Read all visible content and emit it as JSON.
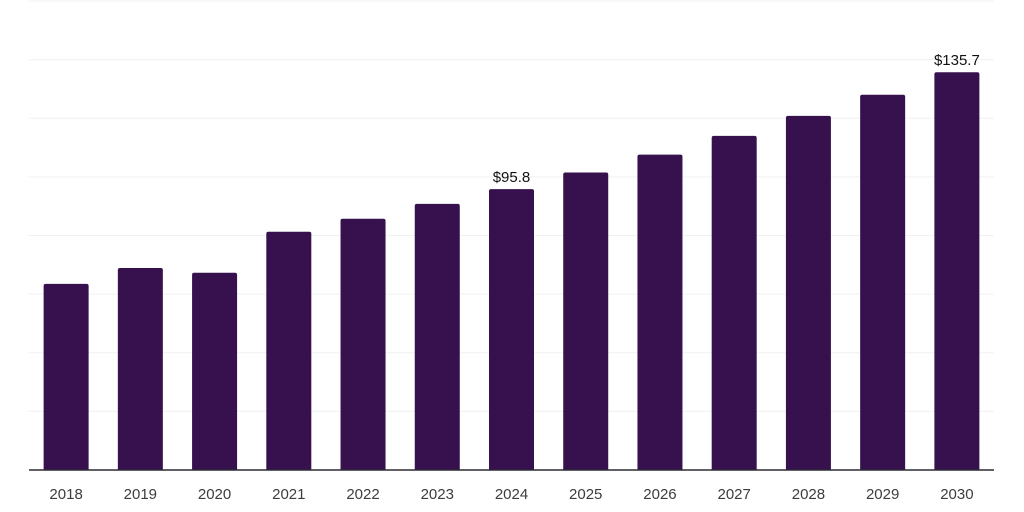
{
  "chart_data": {
    "type": "bar",
    "categories": [
      "2018",
      "2019",
      "2020",
      "2021",
      "2022",
      "2023",
      "2024",
      "2025",
      "2026",
      "2027",
      "2028",
      "2029",
      "2030"
    ],
    "values": [
      63.5,
      68.9,
      67.3,
      81.3,
      85.7,
      90.8,
      95.8,
      101.5,
      107.6,
      114.0,
      120.8,
      128.0,
      135.7
    ],
    "data_labels": {
      "2024": "$95.8",
      "2030": "$135.7"
    },
    "value_prefix": "$",
    "ylim": [
      0,
      160
    ],
    "grid_step": 20,
    "grid": true,
    "legend": false,
    "colors": {
      "bar": "#36114e",
      "gridline": "#f0f0f0",
      "axis_line": "#2b2b33",
      "tick_label": "#3d3d3d",
      "data_label": "#111111",
      "background": "#ffffff"
    }
  }
}
